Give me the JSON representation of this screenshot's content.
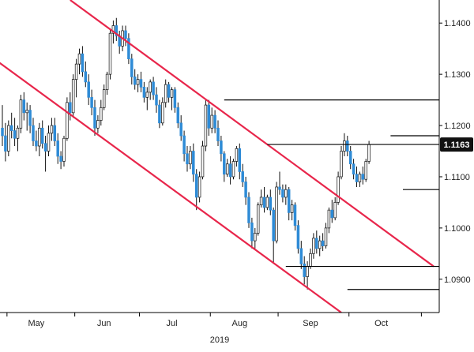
{
  "chart_data": {
    "type": "candlestick",
    "title": "",
    "xlabel": "2019",
    "ylabel": "",
    "ylim": [
      1.0835,
      1.1445
    ],
    "y_ticks": [
      "1.1400",
      "1.1300",
      "1.1200",
      "1.1100",
      "1.1000",
      "1.0900"
    ],
    "x_ticks": [
      "May",
      "Jun",
      "Jul",
      "Aug",
      "Sep",
      "Oct"
    ],
    "colors": {
      "up": "#ffffff",
      "down": "#2e8bd6",
      "wick": "#111111",
      "channel": "#e8264b",
      "level": "#000000",
      "badge": "#111111"
    },
    "current_price_label": "1.1163",
    "current_price": 1.1163,
    "series": [
      {
        "name": "",
        "values": [
          [
            1.1195,
            1.124,
            1.116,
            1.118
          ],
          [
            1.118,
            1.1205,
            1.113,
            1.115
          ],
          [
            1.115,
            1.121,
            1.114,
            1.12
          ],
          [
            1.12,
            1.1225,
            1.1175,
            1.119
          ],
          [
            1.119,
            1.1215,
            1.116,
            1.1175
          ],
          [
            1.1175,
            1.12,
            1.115,
            1.1195
          ],
          [
            1.1195,
            1.126,
            1.1185,
            1.125
          ],
          [
            1.125,
            1.1265,
            1.121,
            1.1225
          ],
          [
            1.1225,
            1.1245,
            1.119,
            1.123
          ],
          [
            1.123,
            1.124,
            1.1185,
            1.12
          ],
          [
            1.12,
            1.1215,
            1.116,
            1.117
          ],
          [
            1.117,
            1.119,
            1.115,
            1.116
          ],
          [
            1.116,
            1.1205,
            1.114,
            1.1195
          ],
          [
            1.1195,
            1.121,
            1.1155,
            1.1165
          ],
          [
            1.1165,
            1.118,
            1.111,
            1.115
          ],
          [
            1.115,
            1.12,
            1.114,
            1.1185
          ],
          [
            1.1185,
            1.1215,
            1.117,
            1.12
          ],
          [
            1.12,
            1.1215,
            1.116,
            1.117
          ],
          [
            1.117,
            1.1185,
            1.1125,
            1.114
          ],
          [
            1.114,
            1.115,
            1.1115,
            1.113
          ],
          [
            1.113,
            1.118,
            1.112,
            1.1175
          ],
          [
            1.1175,
            1.1255,
            1.117,
            1.1245
          ],
          [
            1.1245,
            1.1265,
            1.121,
            1.1225
          ],
          [
            1.1225,
            1.13,
            1.1215,
            1.129
          ],
          [
            1.129,
            1.133,
            1.1255,
            1.132
          ],
          [
            1.132,
            1.135,
            1.13,
            1.134
          ],
          [
            1.134,
            1.1355,
            1.1295,
            1.1305
          ],
          [
            1.1305,
            1.1325,
            1.1275,
            1.1285
          ],
          [
            1.1285,
            1.13,
            1.124,
            1.1255
          ],
          [
            1.1255,
            1.127,
            1.122,
            1.1235
          ],
          [
            1.1235,
            1.125,
            1.118,
            1.1195
          ],
          [
            1.1195,
            1.122,
            1.1185,
            1.121
          ],
          [
            1.121,
            1.125,
            1.12,
            1.1235
          ],
          [
            1.1235,
            1.128,
            1.123,
            1.127
          ],
          [
            1.127,
            1.1305,
            1.126,
            1.13
          ],
          [
            1.13,
            1.139,
            1.129,
            1.138
          ],
          [
            1.138,
            1.1405,
            1.136,
            1.1395
          ],
          [
            1.1395,
            1.141,
            1.1365,
            1.1375
          ],
          [
            1.1375,
            1.1385,
            1.134,
            1.1355
          ],
          [
            1.1355,
            1.1395,
            1.1345,
            1.1385
          ],
          [
            1.1385,
            1.1395,
            1.1355,
            1.137
          ],
          [
            1.137,
            1.138,
            1.132,
            1.133
          ],
          [
            1.133,
            1.134,
            1.128,
            1.1295
          ],
          [
            1.1295,
            1.131,
            1.127,
            1.128
          ],
          [
            1.128,
            1.13,
            1.1265,
            1.129
          ],
          [
            1.129,
            1.1305,
            1.1265,
            1.1275
          ],
          [
            1.1275,
            1.1285,
            1.1245,
            1.1255
          ],
          [
            1.1255,
            1.1275,
            1.123,
            1.1265
          ],
          [
            1.1265,
            1.129,
            1.125,
            1.1285
          ],
          [
            1.1285,
            1.1295,
            1.125,
            1.126
          ],
          [
            1.126,
            1.1275,
            1.1225,
            1.124
          ],
          [
            1.124,
            1.125,
            1.1195,
            1.1205
          ],
          [
            1.1205,
            1.1255,
            1.12,
            1.1245
          ],
          [
            1.1245,
            1.129,
            1.1235,
            1.128
          ],
          [
            1.128,
            1.1285,
            1.1245,
            1.1255
          ],
          [
            1.1255,
            1.1275,
            1.123,
            1.127
          ],
          [
            1.127,
            1.1275,
            1.1225,
            1.1235
          ],
          [
            1.1235,
            1.1245,
            1.1195,
            1.1205
          ],
          [
            1.1205,
            1.122,
            1.117,
            1.118
          ],
          [
            1.118,
            1.119,
            1.113,
            1.1145
          ],
          [
            1.1145,
            1.116,
            1.111,
            1.1125
          ],
          [
            1.1125,
            1.116,
            1.1115,
            1.115
          ],
          [
            1.115,
            1.1165,
            1.109,
            1.1105
          ],
          [
            1.1105,
            1.1115,
            1.1035,
            1.106
          ],
          [
            1.106,
            1.111,
            1.105,
            1.11
          ],
          [
            1.11,
            1.117,
            1.1095,
            1.116
          ],
          [
            1.116,
            1.125,
            1.115,
            1.124
          ],
          [
            1.124,
            1.125,
            1.118,
            1.1195
          ],
          [
            1.1195,
            1.1235,
            1.1185,
            1.122
          ],
          [
            1.122,
            1.123,
            1.1185,
            1.1195
          ],
          [
            1.1195,
            1.121,
            1.116,
            1.117
          ],
          [
            1.117,
            1.118,
            1.113,
            1.1145
          ],
          [
            1.1145,
            1.115,
            1.109,
            1.1105
          ],
          [
            1.1105,
            1.1135,
            1.11,
            1.1125
          ],
          [
            1.1125,
            1.114,
            1.1085,
            1.11
          ],
          [
            1.11,
            1.1135,
            1.1095,
            1.113
          ],
          [
            1.113,
            1.116,
            1.112,
            1.1155
          ],
          [
            1.1155,
            1.1165,
            1.1095,
            1.111
          ],
          [
            1.111,
            1.1125,
            1.108,
            1.109
          ],
          [
            1.109,
            1.11,
            1.1045,
            1.106
          ],
          [
            1.106,
            1.107,
            1.1,
            1.101
          ],
          [
            1.101,
            1.102,
            1.096,
            1.0975
          ],
          [
            1.0975,
            1.1,
            1.096,
            1.099
          ],
          [
            1.099,
            1.105,
            1.0985,
            1.1045
          ],
          [
            1.1045,
            1.1075,
            1.104,
            1.106
          ],
          [
            1.106,
            1.108,
            1.103,
            1.104
          ],
          [
            1.104,
            1.1065,
            1.1035,
            1.106
          ],
          [
            1.106,
            1.1075,
            1.1025,
            1.1035
          ],
          [
            1.1035,
            1.104,
            1.093,
            1.0975
          ],
          [
            1.0975,
            1.109,
            1.097,
            1.108
          ],
          [
            1.108,
            1.111,
            1.1065,
            1.1075
          ],
          [
            1.1075,
            1.1085,
            1.105,
            1.106
          ],
          [
            1.106,
            1.1085,
            1.1045,
            1.1075
          ],
          [
            1.1075,
            1.108,
            1.1015,
            1.103
          ],
          [
            1.103,
            1.1055,
            1.1015,
            1.1045
          ],
          [
            1.1045,
            1.105,
            1.0995,
            1.1005
          ],
          [
            1.1005,
            1.1015,
            1.095,
            1.096
          ],
          [
            1.096,
            1.0975,
            1.092,
            1.093
          ],
          [
            1.093,
            1.0945,
            1.089,
            1.0905
          ],
          [
            1.0905,
            1.0935,
            1.088,
            1.0925
          ],
          [
            1.0925,
            1.096,
            1.092,
            1.095
          ],
          [
            1.095,
            1.099,
            1.094,
            1.098
          ],
          [
            1.098,
            1.0995,
            1.095,
            1.096
          ],
          [
            1.096,
            1.0985,
            1.0945,
            1.0975
          ],
          [
            1.0975,
            1.099,
            1.0955,
            1.0965
          ],
          [
            1.0965,
            1.101,
            1.096,
            1.1
          ],
          [
            1.1,
            1.104,
            1.099,
            1.1035
          ],
          [
            1.1035,
            1.1055,
            1.101,
            1.102
          ],
          [
            1.102,
            1.106,
            1.1015,
            1.105
          ],
          [
            1.105,
            1.111,
            1.1045,
            1.11
          ],
          [
            1.11,
            1.116,
            1.1095,
            1.115
          ],
          [
            1.115,
            1.1185,
            1.114,
            1.117
          ],
          [
            1.117,
            1.118,
            1.114,
            1.115
          ],
          [
            1.115,
            1.116,
            1.1115,
            1.1125
          ],
          [
            1.1125,
            1.1135,
            1.1095,
            1.1105
          ],
          [
            1.1105,
            1.112,
            1.108,
            1.109
          ],
          [
            1.109,
            1.111,
            1.108,
            1.1105
          ],
          [
            1.1105,
            1.112,
            1.1085,
            1.1095
          ],
          [
            1.1095,
            1.1135,
            1.109,
            1.113
          ],
          [
            1.113,
            1.117,
            1.1125,
            1.1163
          ]
        ]
      }
    ],
    "overlays": {
      "channel_lines": [
        {
          "points": [
            [
              -1.5,
              1.1325
            ],
            [
              110,
              1.0835
            ]
          ]
        },
        {
          "points": [
            [
              22,
              1.1445
            ],
            [
              140,
              1.0925
            ]
          ]
        }
      ],
      "levels": [
        {
          "price": 1.125,
          "x_from": 72
        },
        {
          "price": 1.1163,
          "x_from": 86
        },
        {
          "price": 1.118,
          "x_from": 126
        },
        {
          "price": 1.0925,
          "x_from": 92
        },
        {
          "price": 1.088,
          "x_from": 112
        },
        {
          "price": 1.1075,
          "x_from": 130
        }
      ]
    }
  }
}
